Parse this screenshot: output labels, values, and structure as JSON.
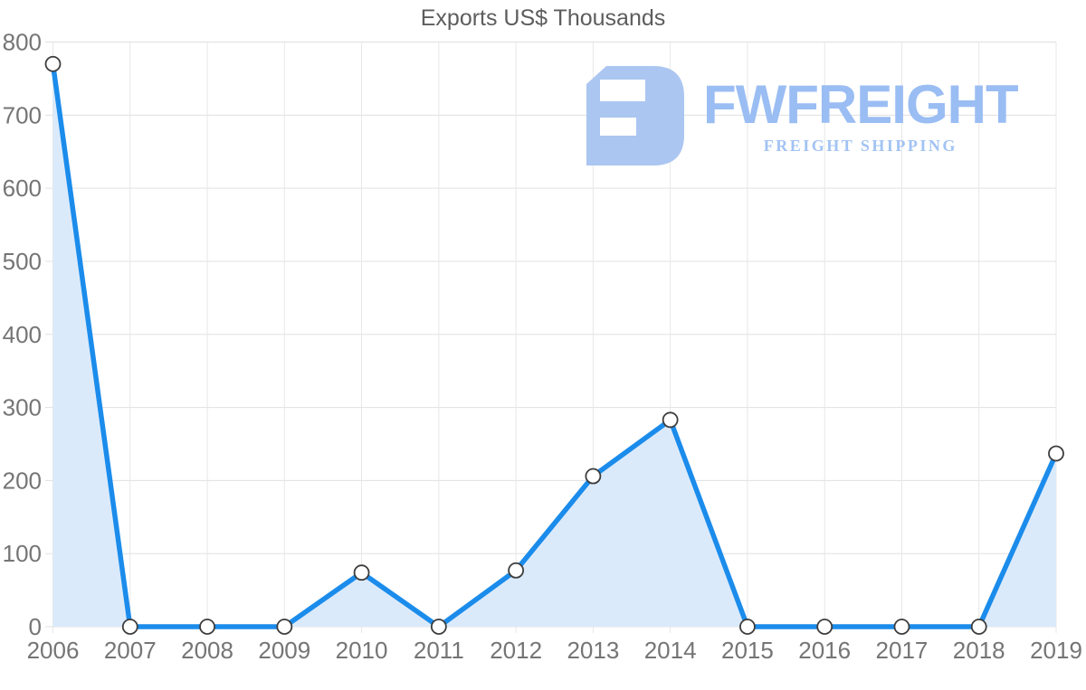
{
  "title": "Exports US$ Thousands",
  "logo": {
    "brand": "FWFREIGHT",
    "tagline": "FREIGHT SHIPPING",
    "mark_color": "#abc6f1",
    "brand_color": "#9abdf3",
    "tagline_color": "#a2c3f4"
  },
  "chart_data": {
    "type": "area",
    "title": "Exports US$ Thousands",
    "x": [
      "2006",
      "2007",
      "2008",
      "2009",
      "2010",
      "2011",
      "2012",
      "2013",
      "2014",
      "2015",
      "2016",
      "2017",
      "2018",
      "2019"
    ],
    "values": [
      770,
      0,
      0,
      0,
      74,
      0,
      77,
      206,
      283,
      0,
      0,
      0,
      0,
      237
    ],
    "xlabel": "",
    "ylabel": "",
    "ylim": [
      0,
      800
    ],
    "ytick_step": 100,
    "yticks": [
      0,
      100,
      200,
      300,
      400,
      500,
      600,
      700,
      800
    ],
    "grid": true,
    "legend": "none",
    "line_color": "#1b8ceb",
    "fill_color": "#dbeafb",
    "marker_style": "white-circle-dark-ring",
    "axis_label_color": "#757575",
    "gridline_color": "#e0e0e0"
  }
}
